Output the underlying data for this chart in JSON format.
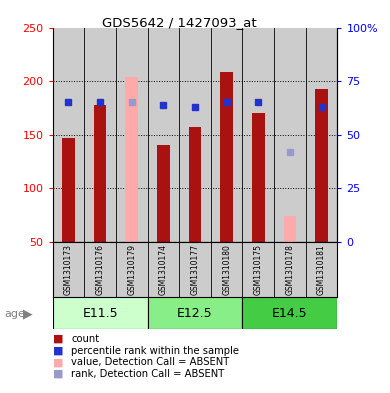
{
  "title": "GDS5642 / 1427093_at",
  "samples": [
    "GSM1310173",
    "GSM1310176",
    "GSM1310179",
    "GSM1310174",
    "GSM1310177",
    "GSM1310180",
    "GSM1310175",
    "GSM1310178",
    "GSM1310181"
  ],
  "age_groups": [
    {
      "label": "E11.5",
      "start": 0,
      "end": 3,
      "color": "#ccffcc"
    },
    {
      "label": "E12.5",
      "start": 3,
      "end": 6,
      "color": "#88ee88"
    },
    {
      "label": "E14.5",
      "start": 6,
      "end": 9,
      "color": "#44cc44"
    }
  ],
  "count_values": [
    147,
    178,
    null,
    140,
    157,
    208,
    170,
    null,
    193
  ],
  "absent_value": [
    null,
    null,
    204,
    null,
    null,
    null,
    null,
    74,
    null
  ],
  "percentile_rank": [
    65,
    65,
    null,
    64,
    63,
    65,
    65,
    null,
    63
  ],
  "absent_rank": [
    null,
    null,
    65,
    null,
    null,
    null,
    null,
    42,
    null
  ],
  "ylim_left": [
    50,
    250
  ],
  "ylim_right": [
    0,
    100
  ],
  "yticks_left": [
    50,
    100,
    150,
    200,
    250
  ],
  "ytick_labels_left": [
    "50",
    "100",
    "150",
    "200",
    "250"
  ],
  "yticks_right": [
    0,
    25,
    50,
    75,
    100
  ],
  "ytick_labels_right": [
    "0",
    "25",
    "50",
    "75",
    "100%"
  ],
  "bar_width": 0.4,
  "colors": {
    "count_bar": "#aa1111",
    "absent_bar": "#ffaaaa",
    "percentile_dot": "#2233cc",
    "absent_rank_dot": "#9999cc",
    "sample_bg": "#cccccc",
    "plot_bg": "#ffffff"
  },
  "legend_items": [
    {
      "color": "#aa1111",
      "label": "count"
    },
    {
      "color": "#2233cc",
      "label": "percentile rank within the sample"
    },
    {
      "color": "#ffaaaa",
      "label": "value, Detection Call = ABSENT"
    },
    {
      "color": "#9999cc",
      "label": "rank, Detection Call = ABSENT"
    }
  ]
}
